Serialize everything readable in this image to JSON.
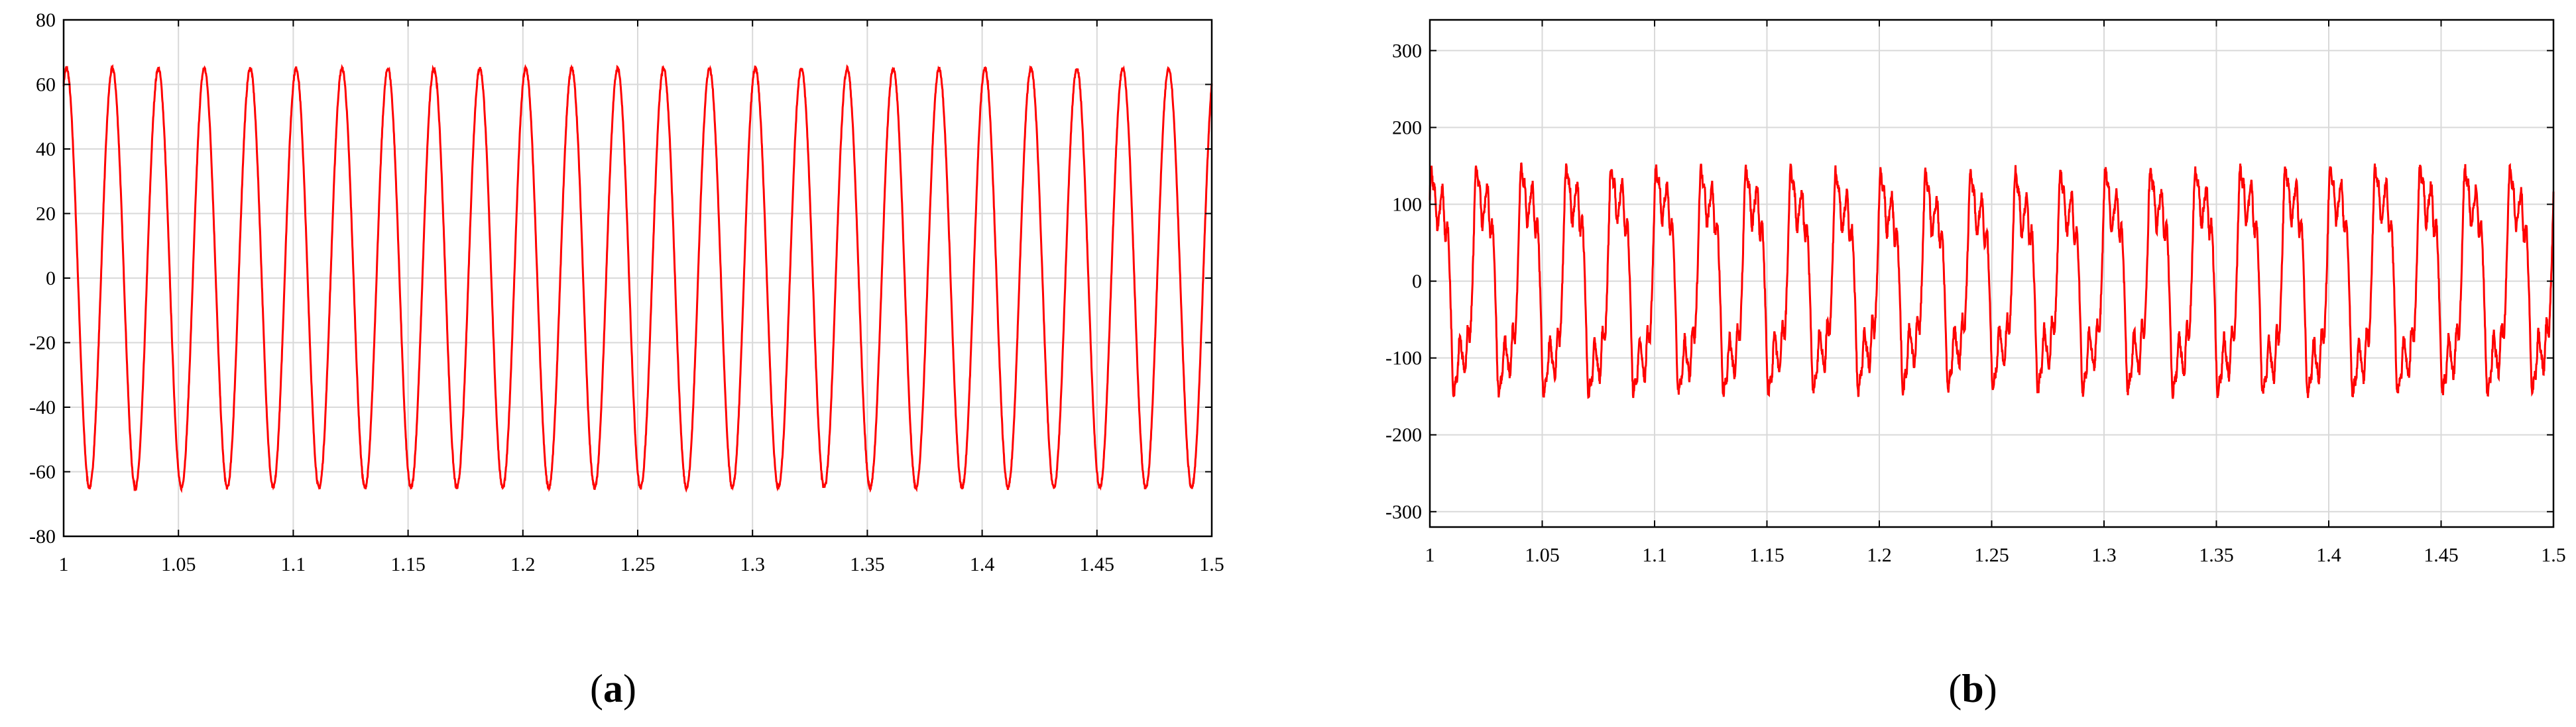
{
  "chart_data": [
    {
      "type": "line",
      "panel_label": "a",
      "x_range": [
        1,
        1.5
      ],
      "ylim": [
        -80,
        80
      ],
      "x_ticks": [
        "1",
        "1.05",
        "1.1",
        "1.15",
        "1.2",
        "1.25",
        "1.3",
        "1.35",
        "1.4",
        "1.45",
        "1.5"
      ],
      "y_ticks": [
        "80",
        "60",
        "40",
        "20",
        "0",
        "-20",
        "-40",
        "-60",
        "-80"
      ],
      "grid": true,
      "series": [
        {
          "color": "#ff0000",
          "waveform": "sinusoid",
          "amplitude": 65,
          "frequency_hz": 50,
          "value_at_start": 60
        }
      ]
    },
    {
      "type": "line",
      "panel_label": "b",
      "x_range": [
        1,
        1.5
      ],
      "ylim": [
        -320,
        340
      ],
      "x_ticks": [
        "1",
        "1.05",
        "1.1",
        "1.15",
        "1.2",
        "1.25",
        "1.3",
        "1.35",
        "1.4",
        "1.45",
        "1.5"
      ],
      "y_ticks": [
        "300",
        "200",
        "100",
        "0",
        "-100",
        "-200",
        "-300"
      ],
      "grid": true,
      "series": [
        {
          "color": "#ff0000",
          "waveform": "distorted periodic",
          "fundamental_hz": 50,
          "peak_max": 190,
          "peak_min": -190
        }
      ]
    }
  ],
  "labels": {
    "a": "a",
    "b": "b",
    "open": "(",
    "close": ")"
  }
}
